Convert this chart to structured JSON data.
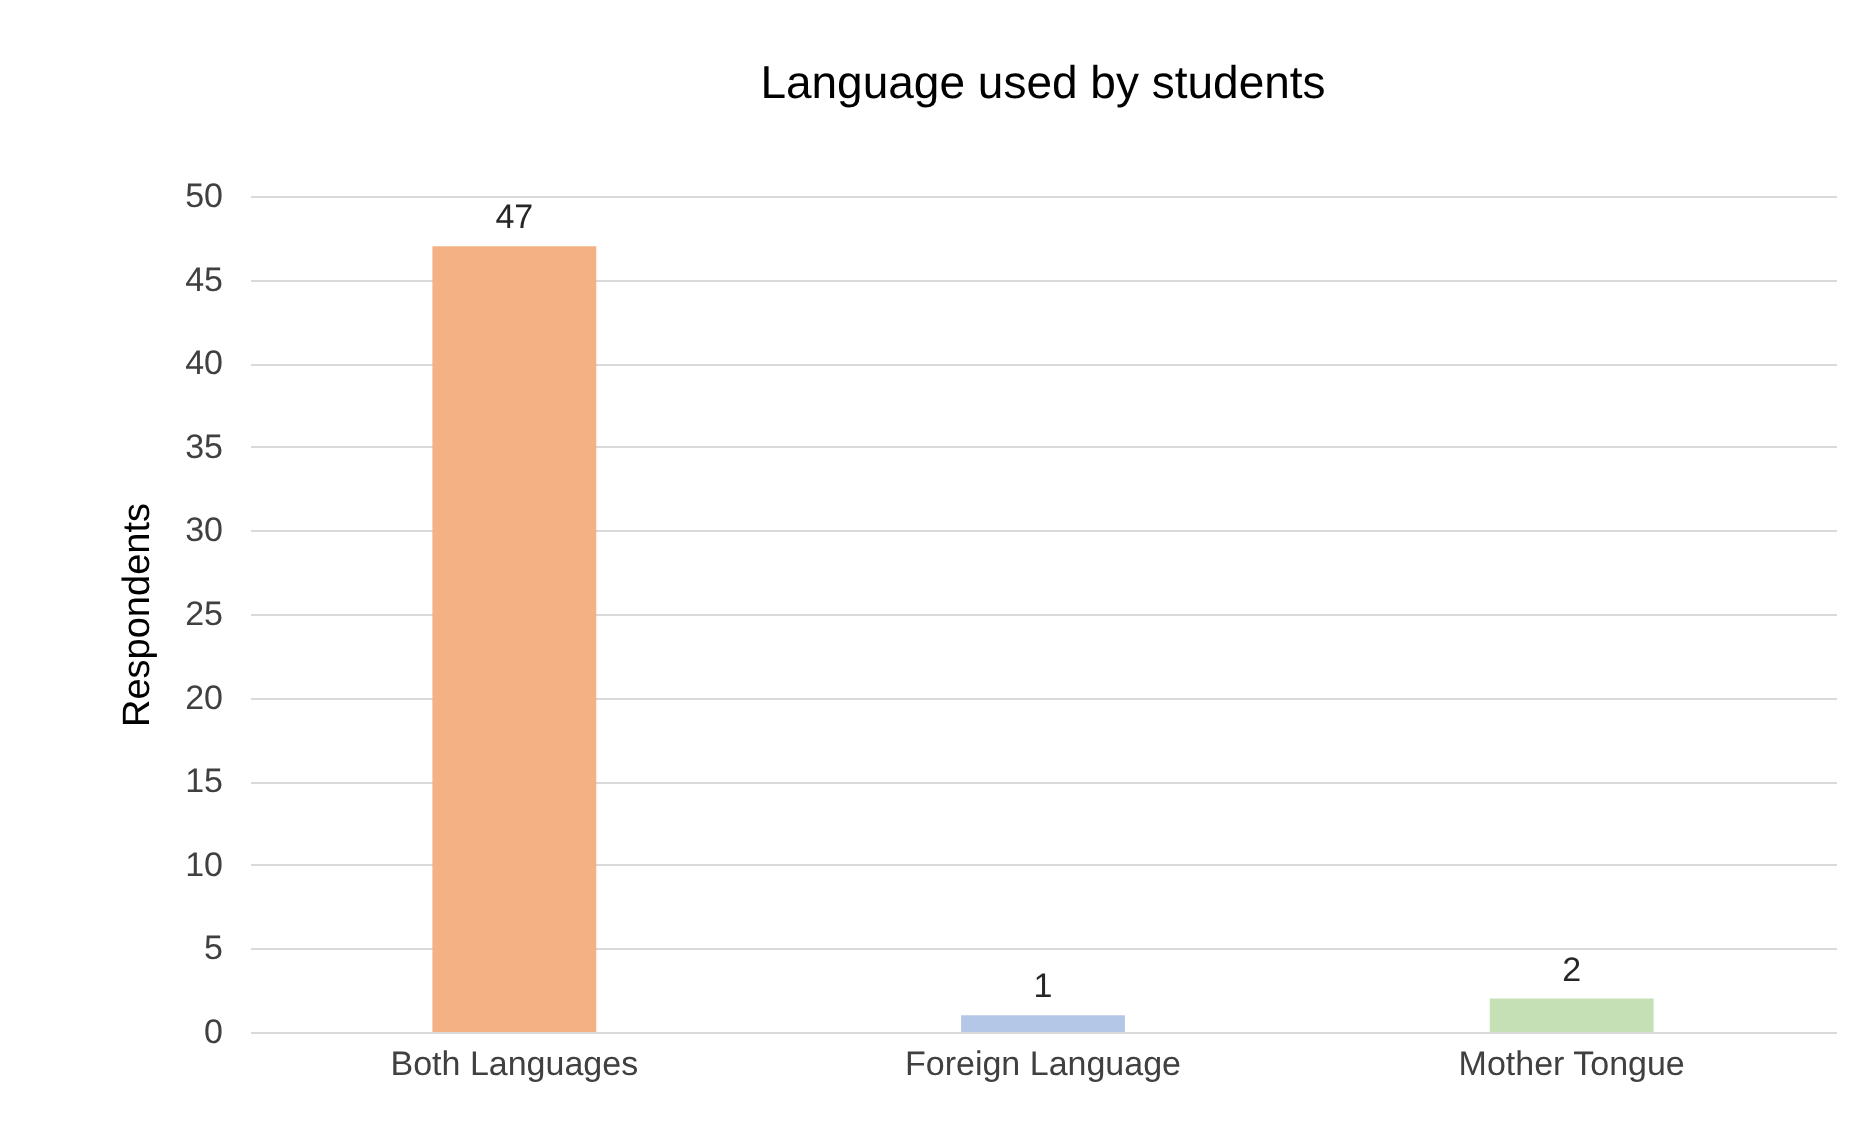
{
  "chart_data": {
    "type": "bar",
    "title": "Language used by students",
    "ylabel": "Respondents",
    "categories": [
      "Both Languages",
      "Foreign Language",
      "Mother Tongue"
    ],
    "values": [
      47,
      1,
      2
    ],
    "colors": [
      "#f4b183",
      "#b4c7e7",
      "#c5e0b4"
    ],
    "ylim": [
      0,
      50
    ],
    "yticks": [
      0,
      5,
      10,
      15,
      20,
      25,
      30,
      35,
      40,
      45,
      50
    ],
    "grid": "y",
    "data_labels": true
  }
}
